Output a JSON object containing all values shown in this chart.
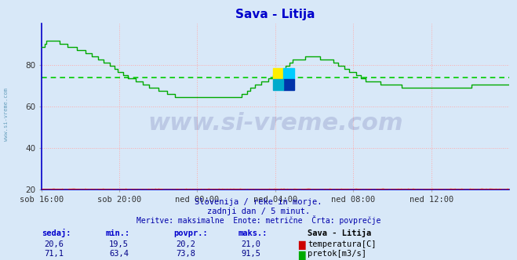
{
  "title": "Sava - Litija",
  "title_color": "#0000cc",
  "bg_color": "#d8e8f8",
  "plot_bg_color": "#d8e8f8",
  "grid_color": "#ffaaaa",
  "x_labels": [
    "sob 16:00",
    "sob 20:00",
    "ned 00:00",
    "ned 04:00",
    "ned 08:00",
    "ned 12:00"
  ],
  "x_ticks_norm": [
    0.0,
    0.1667,
    0.3333,
    0.5,
    0.6667,
    0.8333
  ],
  "ylim": [
    20,
    100
  ],
  "yticks": [
    20,
    40,
    60,
    80
  ],
  "temp_avg": 20.2,
  "flow_avg": 73.8,
  "temp_color": "#cc0000",
  "flow_color": "#00aa00",
  "avg_color_temp": "#cc0000",
  "avg_color_flow": "#00cc00",
  "watermark_text": "www.si-vreme.com",
  "watermark_color": "#000066",
  "watermark_alpha": 0.13,
  "sub_text1": "Slovenija / reke in morje.",
  "sub_text2": "zadnji dan / 5 minut.",
  "sub_text3": "Meritve: maksimalne  Enote: metrične  Črta: povprečje",
  "sub_color": "#0000aa",
  "legend_header": "Sava - Litija",
  "legend_temp_label": "temperatura[C]",
  "legend_flow_label": "pretok[m3/s]",
  "stat_headers": [
    "sedaj:",
    "min.:",
    "povpr.:",
    "maks.:"
  ],
  "temp_stats": [
    "20,6",
    "19,5",
    "20,2",
    "21,0"
  ],
  "flow_stats": [
    "71,1",
    "63,4",
    "73,8",
    "91,5"
  ],
  "left_label": "www.si-vreme.com",
  "left_label_color": "#4488aa",
  "spine_color": "#0000cc",
  "logo_colors": [
    "#ffee00",
    "#00ccff",
    "#0033aa",
    "#00aacc"
  ]
}
